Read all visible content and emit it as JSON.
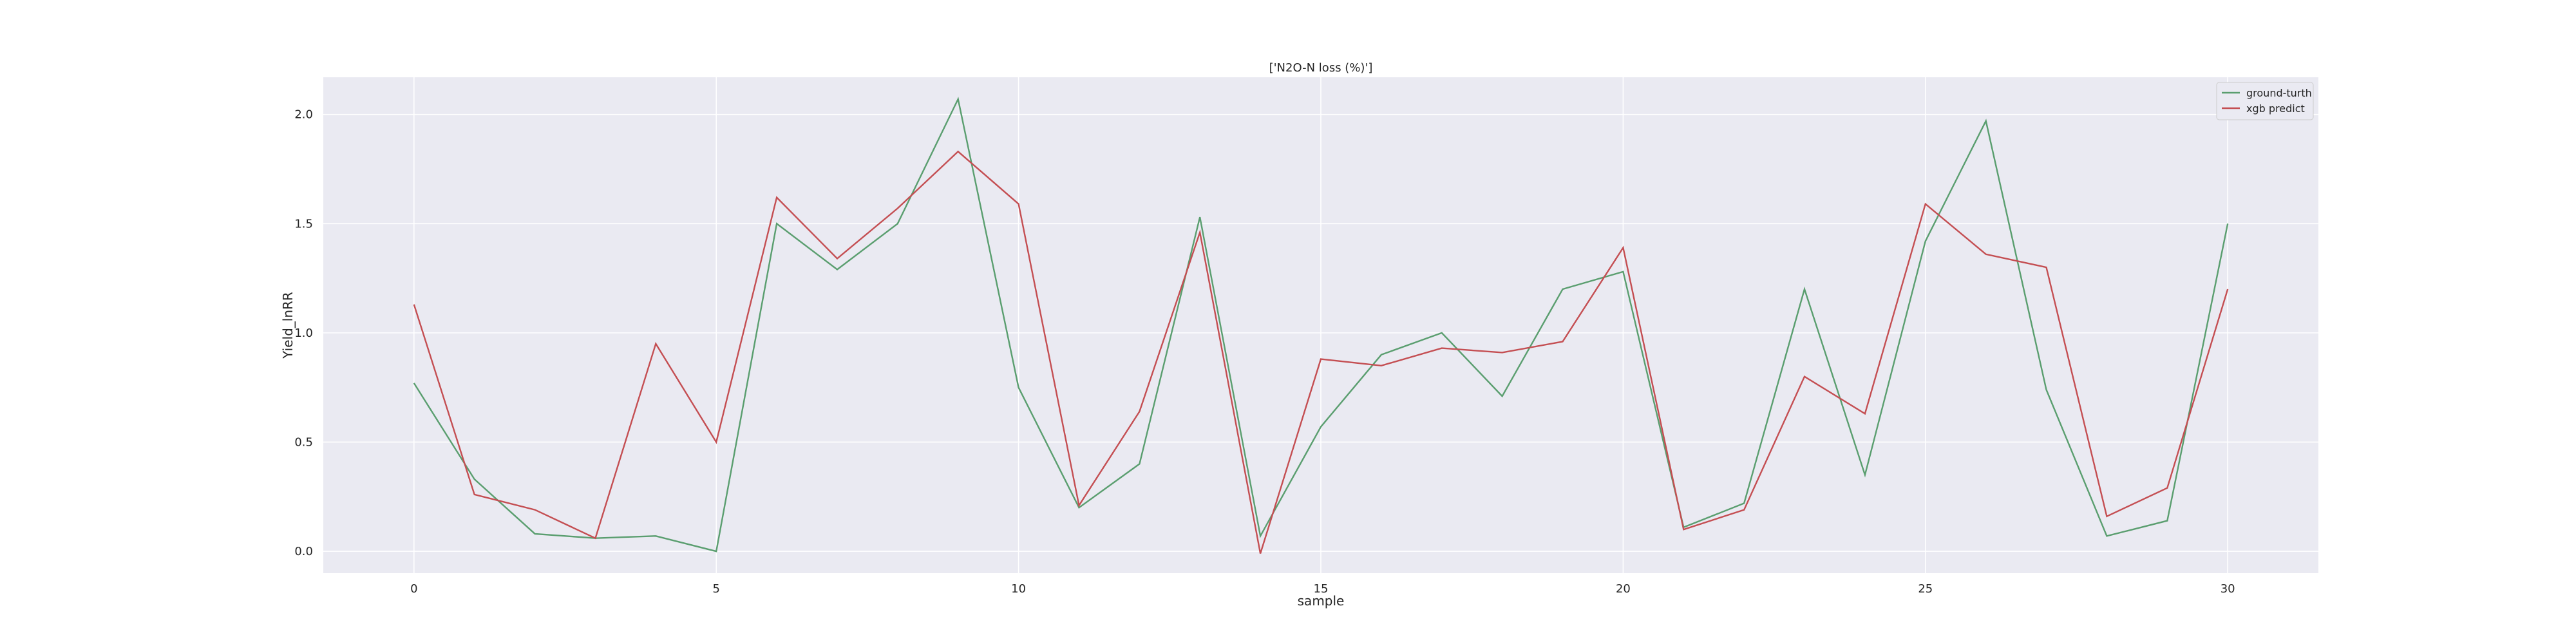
{
  "chart_data": {
    "type": "line",
    "title": "['N2O-N loss (%)']",
    "xlabel": "sample",
    "ylabel": "Yield_lnRR",
    "xlim": [
      -1.5,
      31.5
    ],
    "ylim": [
      -0.1,
      2.17
    ],
    "x_ticks": [
      0,
      5,
      10,
      15,
      20,
      25,
      30
    ],
    "y_ticks": [
      0.0,
      0.5,
      1.0,
      1.5,
      2.0
    ],
    "y_tick_labels": [
      "0.0",
      "0.5",
      "1.0",
      "1.5",
      "2.0"
    ],
    "grid": true,
    "legend_position": "top-right",
    "x": [
      0,
      1,
      2,
      3,
      4,
      5,
      6,
      7,
      8,
      9,
      10,
      11,
      12,
      13,
      14,
      15,
      16,
      17,
      18,
      19,
      20,
      21,
      22,
      23,
      24,
      25,
      26,
      27,
      28,
      29,
      30
    ],
    "series": [
      {
        "name": "ground-turth",
        "color": "#5a9e6f",
        "values": [
          0.77,
          0.33,
          0.08,
          0.06,
          0.07,
          0.0,
          1.5,
          1.29,
          1.5,
          2.07,
          0.75,
          0.2,
          0.4,
          1.53,
          0.07,
          0.57,
          0.9,
          1.0,
          0.71,
          1.2,
          1.28,
          0.11,
          0.22,
          1.2,
          0.35,
          1.42,
          1.97,
          0.74,
          0.07,
          0.14,
          1.5
        ]
      },
      {
        "name": "xgb predict",
        "color": "#c44e52",
        "values": [
          1.13,
          0.26,
          0.19,
          0.06,
          0.95,
          0.5,
          1.62,
          1.34,
          1.57,
          1.83,
          1.59,
          0.21,
          0.64,
          1.46,
          -0.01,
          0.88,
          0.85,
          0.93,
          0.91,
          0.96,
          1.39,
          0.1,
          0.19,
          0.8,
          0.63,
          1.59,
          1.36,
          1.3,
          0.16,
          0.29,
          1.2
        ]
      }
    ]
  }
}
